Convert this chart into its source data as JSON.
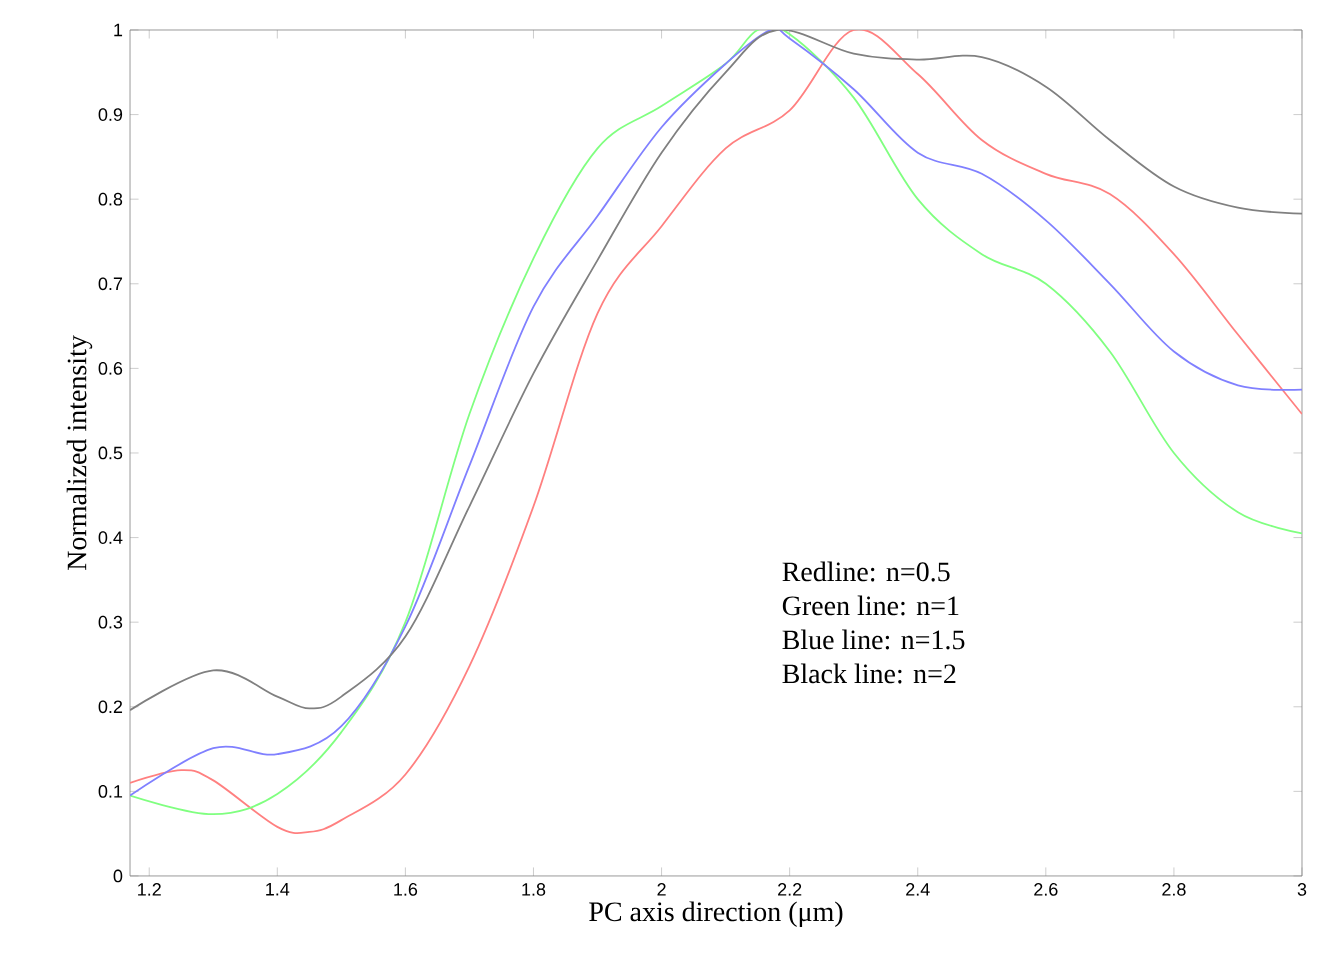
{
  "chart_data": {
    "type": "line",
    "xlabel": "PC axis direction (μm)",
    "ylabel": "Normalized intensity",
    "annotations": [
      "Redline: n=0.5",
      "Green line: n=1",
      "Blue line: n=1.5",
      "Black line: n=2"
    ],
    "xlim": [
      1.17,
      3
    ],
    "ylim": [
      0,
      1
    ],
    "xticks": [
      1.2,
      1.4,
      1.6,
      1.8,
      2,
      2.2,
      2.4,
      2.6,
      2.8,
      3
    ],
    "yticks": [
      0,
      0.1,
      0.2,
      0.3,
      0.4,
      0.5,
      0.6,
      0.7,
      0.8,
      0.9,
      1
    ],
    "grid": false,
    "marker": "none",
    "line_style": "solid",
    "series": [
      {
        "color": "#ff8080",
        "x": [
          1.17,
          1.25,
          1.3,
          1.4,
          1.45,
          1.5,
          1.6,
          1.7,
          1.8,
          1.9,
          2.0,
          2.1,
          2.2,
          2.3,
          2.4,
          2.5,
          2.6,
          2.7,
          2.8,
          2.9,
          3.0
        ],
        "values": [
          0.11,
          0.125,
          0.113,
          0.058,
          0.052,
          0.066,
          0.12,
          0.248,
          0.437,
          0.665,
          0.768,
          0.86,
          0.905,
          1.0,
          0.948,
          0.87,
          0.83,
          0.806,
          0.735,
          0.64,
          0.546
        ]
      },
      {
        "color": "#80ff80",
        "x": [
          1.17,
          1.3,
          1.4,
          1.5,
          1.6,
          1.7,
          1.8,
          1.9,
          2.0,
          2.1,
          2.15,
          2.2,
          2.3,
          2.4,
          2.5,
          2.6,
          2.7,
          2.8,
          2.9,
          3.0
        ],
        "values": [
          0.095,
          0.073,
          0.097,
          0.17,
          0.3,
          0.546,
          0.73,
          0.86,
          0.91,
          0.96,
          1.0,
          0.995,
          0.92,
          0.8,
          0.735,
          0.7,
          0.62,
          0.5,
          0.43,
          0.405
        ]
      },
      {
        "color": "#8080ff",
        "x": [
          1.17,
          1.3,
          1.4,
          1.5,
          1.6,
          1.7,
          1.8,
          1.9,
          2.0,
          2.1,
          2.17,
          2.2,
          2.3,
          2.4,
          2.5,
          2.6,
          2.7,
          2.8,
          2.9,
          3.0
        ],
        "values": [
          0.095,
          0.151,
          0.144,
          0.177,
          0.295,
          0.485,
          0.673,
          0.78,
          0.885,
          0.96,
          1.0,
          0.99,
          0.93,
          0.855,
          0.83,
          0.775,
          0.7,
          0.62,
          0.58,
          0.575
        ]
      },
      {
        "color": "#808080",
        "x": [
          1.17,
          1.3,
          1.4,
          1.45,
          1.5,
          1.6,
          1.7,
          1.8,
          1.9,
          2.0,
          2.1,
          2.18,
          2.3,
          2.4,
          2.5,
          2.6,
          2.7,
          2.8,
          2.9,
          3.0
        ],
        "values": [
          0.196,
          0.243,
          0.212,
          0.198,
          0.212,
          0.283,
          0.437,
          0.594,
          0.728,
          0.855,
          0.95,
          1.0,
          0.972,
          0.965,
          0.968,
          0.933,
          0.87,
          0.815,
          0.79,
          0.783
        ]
      }
    ]
  }
}
